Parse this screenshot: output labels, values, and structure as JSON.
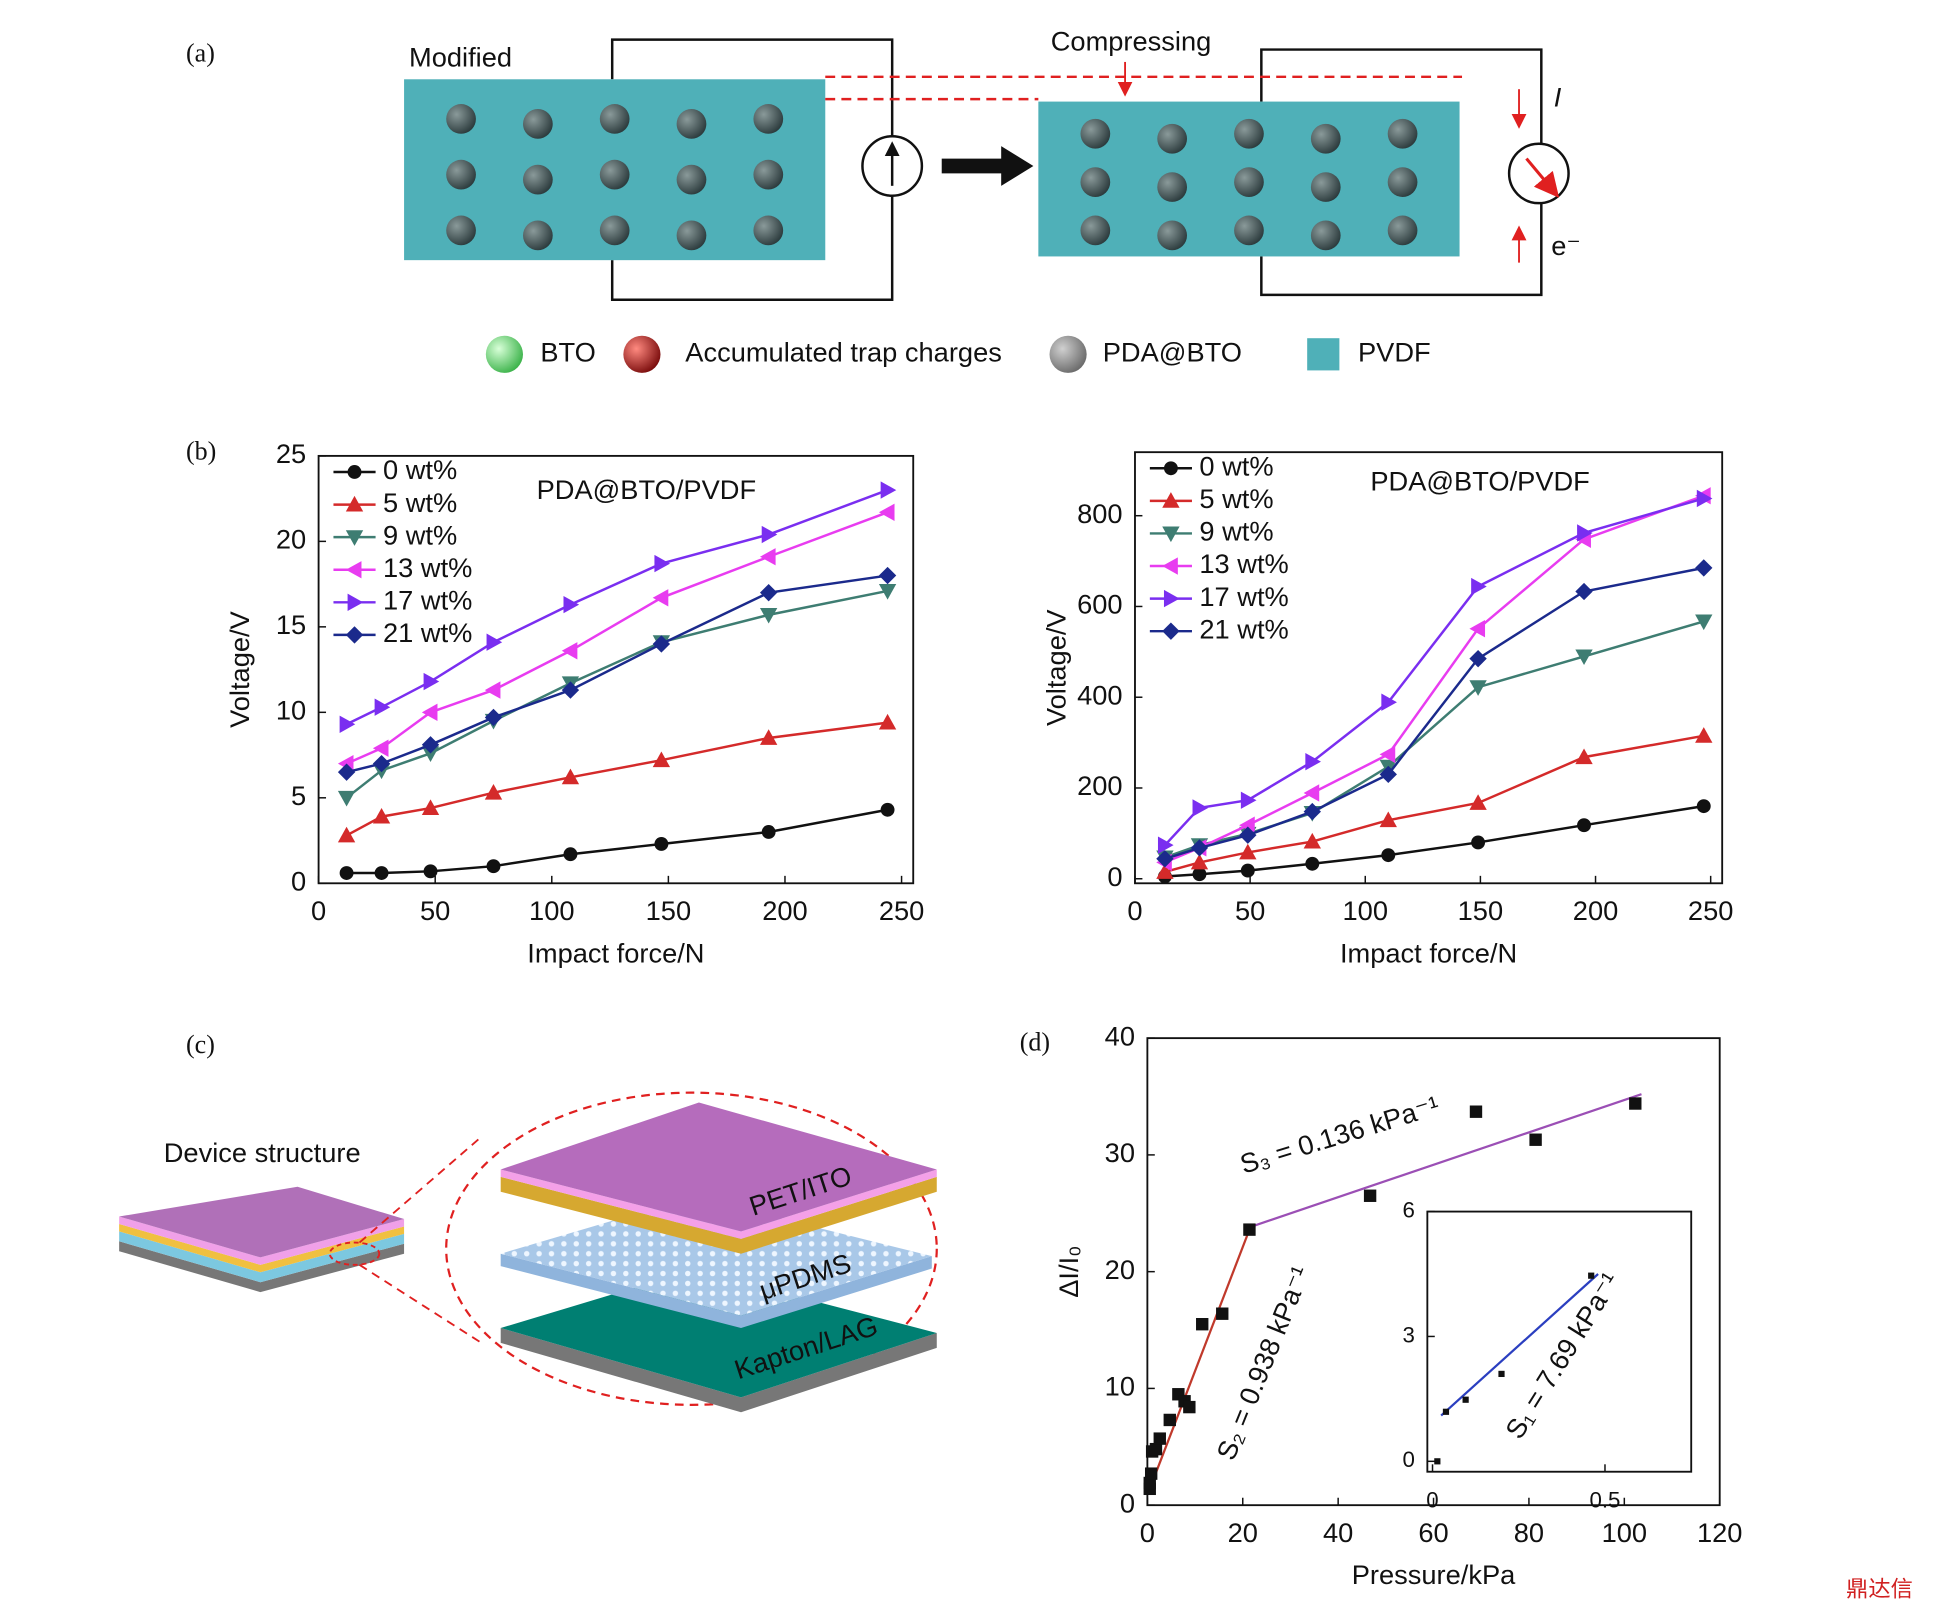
{
  "panel_a": {
    "label": "(a)",
    "left_text": "Modified",
    "compress_text": "Compressing",
    "current": "I",
    "electron": "e⁻",
    "legend": [
      "BTO",
      "Accumulated trap charges",
      "PDA@BTO",
      "PVDF"
    ]
  },
  "panel_c": {
    "label": "(c)",
    "device": "Device structure",
    "layers": [
      "PET/ITO",
      "μPDMS",
      "Kapton/LAG"
    ]
  },
  "watermark": "鼎达信",
  "chart_data": [
    {
      "type": "line",
      "panel_label": "(b)",
      "annotation": "PDA@BTO/PVDF",
      "xlabel": "Impact force/N",
      "ylabel": "Voltage/V",
      "x": [
        12,
        27,
        48,
        75,
        108,
        147,
        193,
        244
      ],
      "xlim": [
        0,
        255
      ],
      "xticks": [
        0,
        50,
        100,
        150,
        200,
        250
      ],
      "ylim": [
        0,
        25
      ],
      "yticks": [
        0,
        5,
        10,
        15,
        20,
        25
      ],
      "legend": "upper left",
      "series": [
        {
          "name": "0 wt%",
          "color": "#111111",
          "marker": "circle",
          "values": [
            0.6,
            0.6,
            0.7,
            1.0,
            1.7,
            2.3,
            3.0,
            4.3
          ]
        },
        {
          "name": "5 wt%",
          "color": "#d42a2a",
          "marker": "triangle-up",
          "values": [
            2.8,
            3.9,
            4.4,
            5.3,
            6.2,
            7.2,
            8.5,
            9.4
          ]
        },
        {
          "name": "9 wt%",
          "color": "#3e7d72",
          "marker": "triangle-down",
          "values": [
            5.0,
            6.6,
            7.6,
            9.5,
            11.7,
            14.1,
            15.7,
            17.1
          ]
        },
        {
          "name": "13 wt%",
          "color": "#e83cf0",
          "marker": "triangle-left",
          "values": [
            7.0,
            7.9,
            10.0,
            11.3,
            13.6,
            16.7,
            19.1,
            21.7
          ]
        },
        {
          "name": "17 wt%",
          "color": "#7a2ef0",
          "marker": "triangle-right",
          "values": [
            9.3,
            10.3,
            11.8,
            14.1,
            16.3,
            18.7,
            20.4,
            23.0
          ]
        },
        {
          "name": "21 wt%",
          "color": "#1b2a8c",
          "marker": "diamond",
          "values": [
            6.5,
            7.0,
            8.1,
            9.7,
            11.3,
            14.0,
            17.0,
            18.0
          ]
        }
      ]
    },
    {
      "type": "line",
      "annotation": "PDA@BTO/PVDF",
      "xlabel": "Impact force/N",
      "ylabel": "Voltage/V",
      "x": [
        13,
        28,
        49,
        77,
        110,
        149,
        195,
        247
      ],
      "xlim": [
        0,
        255
      ],
      "xticks": [
        0,
        50,
        100,
        150,
        200,
        250
      ],
      "ylim": [
        -10,
        940
      ],
      "yticks": [
        0,
        200,
        400,
        600,
        800
      ],
      "legend": "upper left",
      "series": [
        {
          "name": "0 wt%",
          "color": "#111111",
          "marker": "circle",
          "values": [
            5,
            10,
            18,
            33,
            52,
            80,
            118,
            160
          ]
        },
        {
          "name": "5 wt%",
          "color": "#d42a2a",
          "marker": "triangle-up",
          "values": [
            15,
            36,
            58,
            82,
            129,
            167,
            268,
            315
          ]
        },
        {
          "name": "9 wt%",
          "color": "#3e7d72",
          "marker": "triangle-down",
          "values": [
            47,
            74,
            99,
            145,
            247,
            422,
            490,
            567
          ]
        },
        {
          "name": "13 wt%",
          "color": "#e83cf0",
          "marker": "triangle-left",
          "values": [
            36,
            68,
            118,
            189,
            274,
            551,
            748,
            844
          ]
        },
        {
          "name": "17 wt%",
          "color": "#7a2ef0",
          "marker": "triangle-right",
          "values": [
            74,
            156,
            173,
            258,
            389,
            644,
            762,
            838
          ]
        },
        {
          "name": "21 wt%",
          "color": "#1b2a8c",
          "marker": "diamond",
          "values": [
            44,
            68,
            96,
            148,
            230,
            485,
            633,
            685
          ]
        }
      ]
    },
    {
      "type": "scatter",
      "panel_label": "(d)",
      "xlabel": "Pressure/kPa",
      "ylabel": "ΔI/I₀",
      "color": "#111111",
      "x": [
        0.5,
        0.5,
        0.8,
        1.0,
        1.8,
        2.6,
        4.7,
        6.5,
        7.8,
        8.8,
        11.5,
        15.7,
        21.4,
        46.7,
        68.9,
        81.4,
        102.3
      ],
      "values": [
        1.4,
        1.9,
        2.7,
        4.6,
        4.8,
        5.7,
        7.3,
        9.5,
        8.9,
        8.4,
        15.5,
        16.4,
        23.6,
        26.5,
        33.7,
        31.3,
        34.4
      ],
      "xlim": [
        0,
        120
      ],
      "xticks": [
        0,
        20,
        40,
        60,
        80,
        100,
        120
      ],
      "ylim": [
        0,
        40
      ],
      "yticks": [
        0,
        10,
        20,
        30,
        40
      ],
      "fit_lines": [
        {
          "x": [
            0.5,
            21.4
          ],
          "values": [
            1.4,
            23.6
          ],
          "color": "#c0392b"
        },
        {
          "x": [
            21.4,
            103.6
          ],
          "values": [
            23.8,
            35.2
          ],
          "color": "#9b4fb5"
        }
      ],
      "annotations": [
        "S₂ = 0.938 kPa⁻¹",
        "S₃ = 0.136 kPa⁻¹"
      ]
    },
    {
      "type": "scatter",
      "color": "#111111",
      "x": [
        0.014,
        0.039,
        0.096,
        0.2,
        0.46
      ],
      "values": [
        0,
        1.19,
        1.48,
        2.1,
        4.46
      ],
      "xlim": [
        -0.015,
        0.75
      ],
      "xticks": [
        0,
        0.5
      ],
      "ylim": [
        -0.25,
        6
      ],
      "yticks": [
        0,
        3,
        6
      ],
      "fit_lines": [
        {
          "x": [
            0.025,
            0.48
          ],
          "values": [
            1.1,
            4.5
          ],
          "color": "#2b3fc0"
        }
      ],
      "annotations": [
        "S₁ = 7.69 kPa⁻¹"
      ]
    }
  ]
}
